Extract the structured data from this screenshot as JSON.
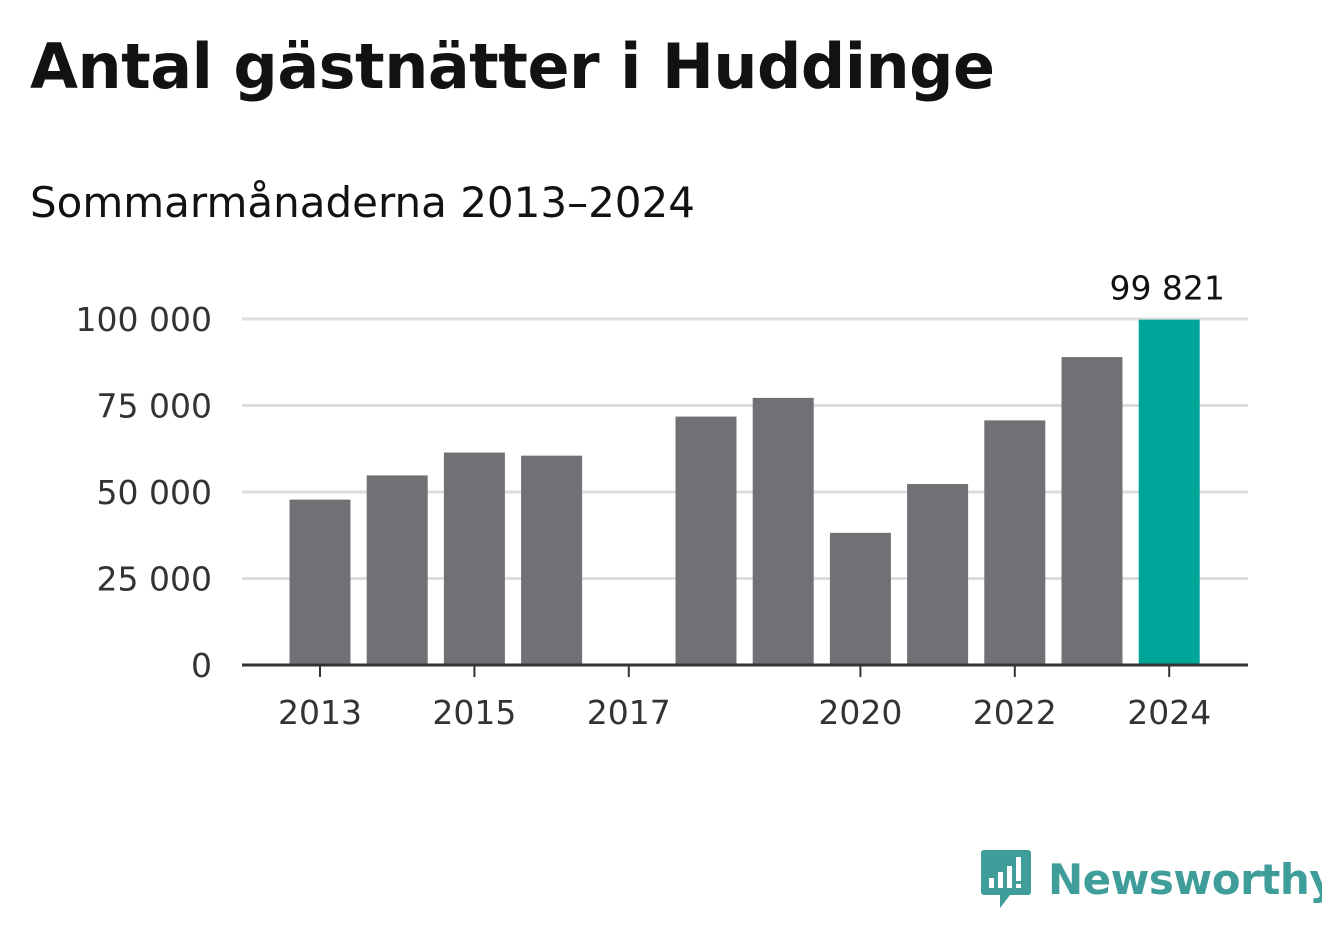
{
  "header": {
    "title": "Antal gästnätter i Huddinge",
    "subtitle": "Sommarmånaderna 2013–2024"
  },
  "branding": {
    "logo_text": "Newsworthy",
    "logo_icon": "bar-chart-speech-bubble-icon",
    "logo_color": "#3f9e9a"
  },
  "colors": {
    "bar": "#707075",
    "highlight": "#00a599",
    "grid": "#dddddd",
    "axis": "#333333"
  },
  "chart_data": {
    "type": "bar",
    "title": "Antal gästnätter i Huddinge",
    "subtitle": "Sommarmånaderna 2013–2024",
    "categories": [
      "2013",
      "2014",
      "2015",
      "2016",
      "2017",
      "2018",
      "2019",
      "2020",
      "2021",
      "2022",
      "2023",
      "2024"
    ],
    "values": [
      47800,
      54800,
      61400,
      60500,
      null,
      71800,
      77200,
      38200,
      52300,
      70700,
      89000,
      99821
    ],
    "highlight_index": 11,
    "data_labels": [
      {
        "index": 11,
        "text": "99 821"
      }
    ],
    "x_tick_labels": [
      "2013",
      "2015",
      "2017",
      "2020",
      "2022",
      "2024"
    ],
    "y_ticks": [
      0,
      25000,
      50000,
      75000,
      100000
    ],
    "y_tick_labels": [
      "0",
      "25 000",
      "50 000",
      "75 000",
      "100 000"
    ],
    "ylim": [
      0,
      100000
    ],
    "grid": true,
    "legend": "none"
  }
}
